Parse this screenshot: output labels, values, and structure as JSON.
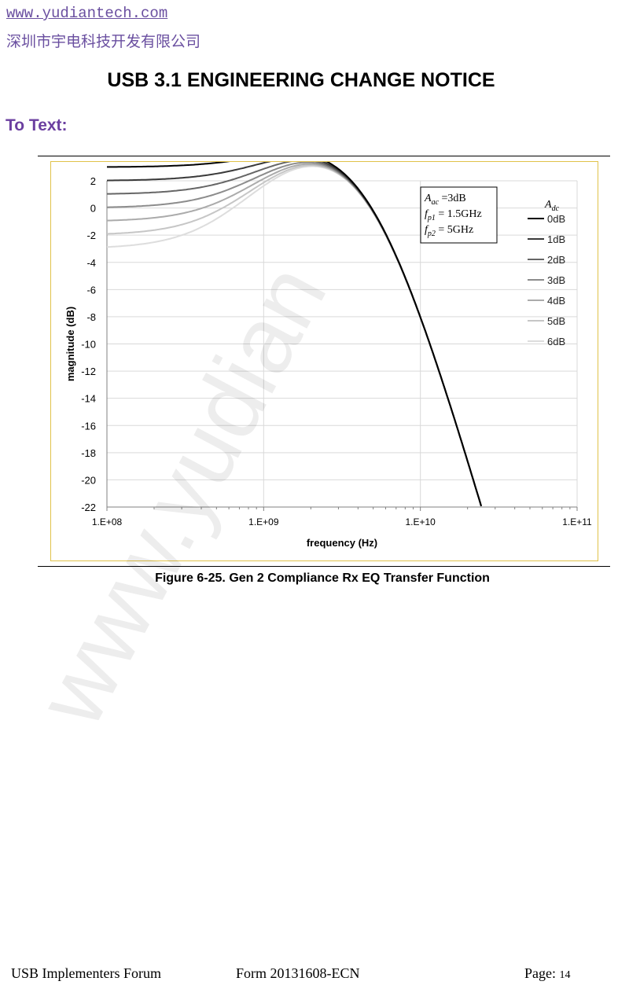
{
  "header": {
    "url": "www.yudiantech.com",
    "company": "深圳市宇电科技开发有限公司"
  },
  "doc_title": "USB 3.1 ENGINEERING CHANGE NOTICE",
  "section_heading": "To Text:",
  "watermark": "www.yudian",
  "caption": "Figure 6-25. Gen 2 Compliance Rx EQ Transfer Function",
  "footer": {
    "org": "USB Implementers Forum",
    "form": "Form 20131608-ECN",
    "page_label": "Page:",
    "page_number": "14"
  },
  "chart_data": {
    "type": "line",
    "xlabel": "frequency (Hz)",
    "ylabel": "magnitude (dB)",
    "x_scale": "log",
    "xlim": [
      100000000,
      100000000000
    ],
    "ylim": [
      -22,
      2
    ],
    "x_ticks": [
      100000000,
      1000000000,
      10000000000,
      100000000000
    ],
    "x_tick_labels": [
      "1.E+08",
      "1.E+09",
      "1.E+10",
      "1.E+11"
    ],
    "y_ticks": [
      2,
      0,
      -2,
      -4,
      -6,
      -8,
      -10,
      -12,
      -14,
      -16,
      -18,
      -20,
      -22
    ],
    "grid": true,
    "legend_position": "right",
    "legend_title": "Adc",
    "params": {
      "aac_dB": 3,
      "fp1_Hz": 1500000000,
      "fp2_Hz": 5000000000
    },
    "param_box": [
      {
        "sym": "A",
        "sub": "ac",
        "rest": " =3dB"
      },
      {
        "sym": "f",
        "sub": "p1",
        "rest": " = 1.5GHz"
      },
      {
        "sym": "f",
        "sub": "p2",
        "rest": " = 5GHz"
      }
    ],
    "series": [
      {
        "name": "0dB",
        "adc_dB": 0,
        "color": "#000000"
      },
      {
        "name": "1dB",
        "adc_dB": 1,
        "color": "#3a3a3a"
      },
      {
        "name": "2dB",
        "adc_dB": 2,
        "color": "#666666"
      },
      {
        "name": "3dB",
        "adc_dB": 3,
        "color": "#8c8c8c"
      },
      {
        "name": "4dB",
        "adc_dB": 4,
        "color": "#ababab"
      },
      {
        "name": "5dB",
        "adc_dB": 5,
        "color": "#c6c6c6"
      },
      {
        "name": "6dB",
        "adc_dB": 6,
        "color": "#dddddd"
      }
    ]
  }
}
